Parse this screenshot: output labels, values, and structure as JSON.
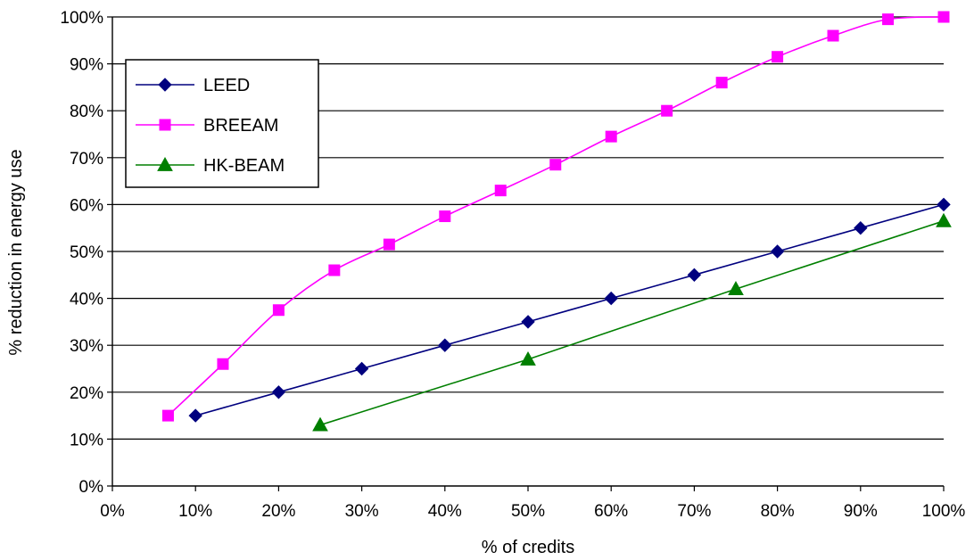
{
  "chart_data": {
    "type": "line",
    "title": "",
    "xlabel": "% of credits",
    "ylabel": "% reduction in energy use",
    "xlim": [
      0,
      100
    ],
    "ylim": [
      0,
      100
    ],
    "x_ticks": [
      "0%",
      "10%",
      "20%",
      "30%",
      "40%",
      "50%",
      "60%",
      "70%",
      "80%",
      "90%",
      "100%"
    ],
    "y_ticks": [
      "0%",
      "10%",
      "20%",
      "30%",
      "40%",
      "50%",
      "60%",
      "70%",
      "80%",
      "90%",
      "100%"
    ],
    "grid": "horizontal",
    "legend_position": "top-left",
    "series": [
      {
        "name": "LEED",
        "color": "#00007f",
        "marker": "diamond",
        "smooth": false,
        "x": [
          10,
          20,
          30,
          40,
          50,
          60,
          70,
          80,
          90,
          100
        ],
        "y": [
          15,
          20,
          25,
          30,
          35,
          40,
          45,
          50,
          55,
          60
        ]
      },
      {
        "name": "BREEAM",
        "color": "#ff00ff",
        "marker": "square",
        "smooth": true,
        "x": [
          6.7,
          13.3,
          20,
          26.7,
          33.3,
          40,
          46.7,
          53.3,
          60,
          66.7,
          73.3,
          80,
          86.7,
          93.3,
          100
        ],
        "y": [
          15,
          26,
          37.5,
          46,
          51.5,
          57.5,
          63,
          68.5,
          74.5,
          80,
          86,
          91.5,
          96,
          99.5,
          100
        ]
      },
      {
        "name": "HK-BEAM",
        "color": "#007f00",
        "marker": "triangle",
        "smooth": false,
        "x": [
          25,
          50,
          75,
          100
        ],
        "y": [
          13,
          27,
          42,
          56.5
        ]
      }
    ]
  }
}
